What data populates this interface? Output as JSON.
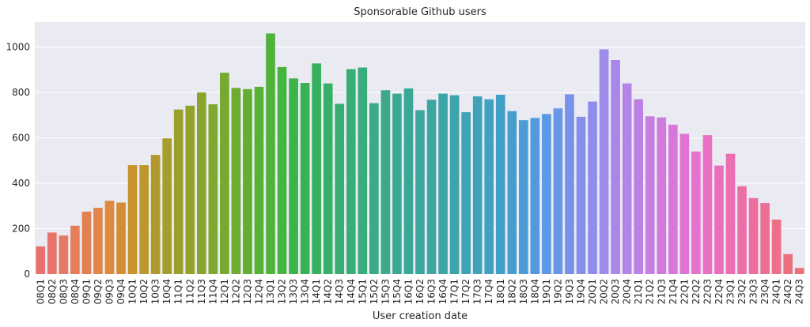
{
  "chart_data": {
    "type": "bar",
    "title": "Sponsorable Github users",
    "xlabel": "User creation date",
    "ylabel": "",
    "ylim": [
      0,
      1110
    ],
    "yticks": [
      0,
      200,
      400,
      600,
      800,
      1000
    ],
    "grid": true,
    "categories": [
      "08Q1",
      "08Q2",
      "08Q3",
      "08Q4",
      "09Q1",
      "09Q2",
      "09Q3",
      "09Q4",
      "10Q1",
      "10Q2",
      "10Q3",
      "10Q4",
      "11Q1",
      "11Q2",
      "11Q3",
      "11Q4",
      "12Q1",
      "12Q2",
      "12Q3",
      "12Q4",
      "13Q1",
      "13Q2",
      "13Q3",
      "13Q4",
      "14Q1",
      "14Q2",
      "14Q3",
      "14Q4",
      "15Q1",
      "15Q2",
      "15Q3",
      "15Q4",
      "16Q1",
      "16Q2",
      "16Q3",
      "16Q4",
      "17Q1",
      "17Q2",
      "17Q3",
      "17Q4",
      "18Q1",
      "18Q2",
      "18Q3",
      "18Q4",
      "19Q1",
      "19Q2",
      "19Q3",
      "19Q4",
      "20Q1",
      "20Q2",
      "20Q3",
      "20Q4",
      "21Q1",
      "21Q2",
      "21Q3",
      "21Q4",
      "22Q1",
      "22Q2",
      "22Q3",
      "22Q4",
      "23Q1",
      "23Q2",
      "23Q3",
      "23Q4",
      "24Q1",
      "24Q2",
      "24Q3"
    ],
    "values": [
      122,
      183,
      170,
      213,
      275,
      292,
      323,
      315,
      480,
      480,
      525,
      598,
      725,
      742,
      800,
      748,
      887,
      820,
      815,
      825,
      1060,
      912,
      862,
      842,
      928,
      840,
      750,
      903,
      910,
      753,
      810,
      795,
      818,
      722,
      768,
      795,
      788,
      713,
      783,
      770,
      790,
      718,
      678,
      688,
      705,
      730,
      792,
      693,
      760,
      990,
      943,
      840,
      770,
      695,
      690,
      658,
      618,
      540,
      612,
      478,
      530,
      387,
      335,
      313,
      240,
      88,
      27
    ],
    "colors": [
      "#e8716f",
      "#e7746a",
      "#e67963",
      "#e57d5b",
      "#e38050",
      "#e18548",
      "#df893f",
      "#d48e32",
      "#c9932e",
      "#bd972c",
      "#b19a2b",
      "#a69d2b",
      "#9ba02b",
      "#92a32b",
      "#88a62c",
      "#7fa82d",
      "#75aa2f",
      "#6cac31",
      "#62ae33",
      "#58b035",
      "#4fb23a",
      "#45b440",
      "#3bb448",
      "#38b254",
      "#37b15e",
      "#37b067",
      "#37ae6f",
      "#38ad77",
      "#39ac7e",
      "#3aab85",
      "#3aaa8b",
      "#3aa991",
      "#3ba896",
      "#3ba79c",
      "#3ca6a1",
      "#3ca5a7",
      "#3da4ad",
      "#3ea3b3",
      "#3fa2b9",
      "#41a1c0",
      "#42a0c7",
      "#459ecf",
      "#4a9cd6",
      "#519ade",
      "#5b98e5",
      "#6896e8",
      "#7693e9",
      "#8390ea",
      "#908dea",
      "#9d8ae9",
      "#a887e8",
      "#b384e6",
      "#bd80e4",
      "#c77de1",
      "#d07add",
      "#d877d9",
      "#e074d3",
      "#e572cc",
      "#e970c4",
      "#ea6fbb",
      "#eb6eb1",
      "#eb6ea7",
      "#eb6e9d",
      "#eb6f93",
      "#eb7088",
      "#ea707e",
      "#ea7176"
    ]
  }
}
